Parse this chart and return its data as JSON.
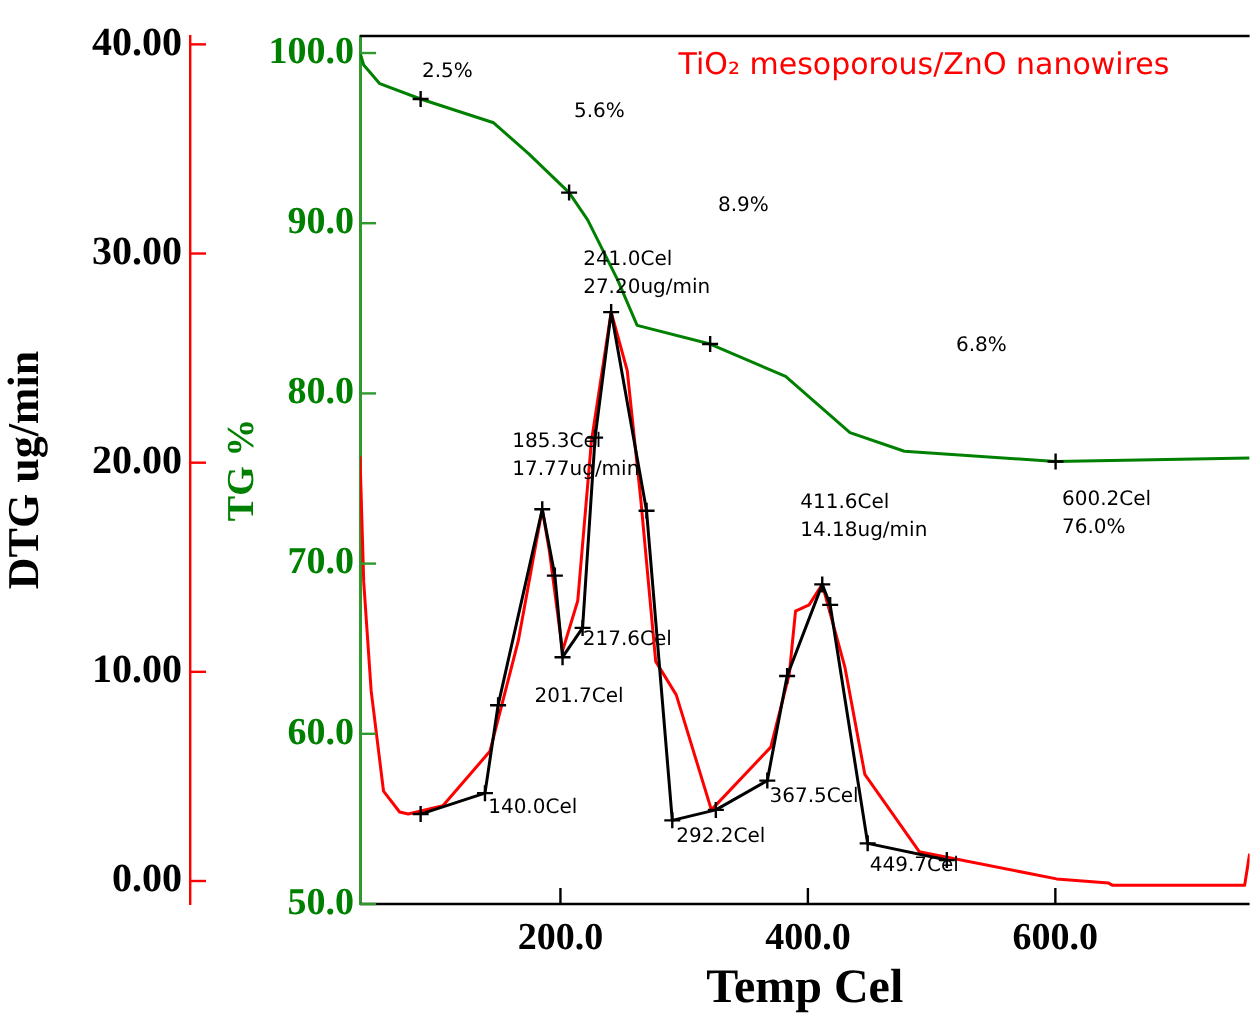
{
  "chart_data": {
    "type": "line",
    "title": "TiO₂ mesoporous/ZnO nanowires",
    "xlabel": "Temp Cel",
    "ylabel": "DTG ug/min",
    "y2label": "TG %",
    "xlim": [
      38,
      757
    ],
    "xticks": [
      {
        "value": 200,
        "label": "200.0"
      },
      {
        "value": 400,
        "label": "400.0"
      },
      {
        "value": 600,
        "label": "600.0"
      }
    ],
    "ylim": [
      -1.1,
      40.4
    ],
    "yticks": [
      {
        "value": 0,
        "label": "0.00"
      },
      {
        "value": 10,
        "label": "10.00"
      },
      {
        "value": 20,
        "label": "20.00"
      },
      {
        "value": 30,
        "label": "30.00"
      },
      {
        "value": 40,
        "label": "40.00"
      }
    ],
    "y2lim": [
      50,
      101
    ],
    "y2ticks": [
      {
        "value": 50,
        "label": "50.0"
      },
      {
        "value": 60,
        "label": "60.0"
      },
      {
        "value": 70,
        "label": "70.0"
      },
      {
        "value": 80,
        "label": "80.0"
      },
      {
        "value": 90,
        "label": "90.0"
      },
      {
        "value": 100,
        "label": "100.0"
      }
    ],
    "grid": false,
    "legend": false,
    "series": [
      {
        "type": "line",
        "axis": "y",
        "color": "#ff0000",
        "marker": "none",
        "x": [
          38,
          41,
          47,
          57,
          70,
          77,
          105,
          143,
          166,
          185.3,
          191,
          201.7,
          214,
          225,
          241.0,
          254,
          265,
          277,
          293.6,
          322,
          370,
          385,
          390,
          401,
          411.6,
          430,
          446,
          490,
          601,
          643,
          646,
          753,
          757
        ],
        "values": [
          20.3,
          14.3,
          9.1,
          4.3,
          3.3,
          3.2,
          3.6,
          6.2,
          11.5,
          17.77,
          15.8,
          11.0,
          13.4,
          21,
          27.2,
          24.4,
          18.2,
          10.5,
          8.9,
          3.4,
          6.4,
          9.9,
          12.9,
          13.2,
          14.18,
          10.2,
          5.1,
          1.4,
          0.1,
          -0.1,
          -0.2,
          -0.2,
          1.3
        ]
      },
      {
        "type": "line",
        "axis": "y2",
        "color": "#008000",
        "marker": "none",
        "x": [
          38,
          41,
          54,
          87,
          146,
          174,
          207,
          222,
          246,
          262,
          321,
          382,
          434,
          478,
          600.2,
          757
        ],
        "values": [
          100.0,
          99.3,
          98.2,
          97.3,
          95.9,
          94.1,
          91.8,
          90.2,
          86.7,
          84.0,
          82.9,
          81.0,
          77.7,
          76.6,
          76.0,
          76.2
        ]
      },
      {
        "type": "scatter",
        "axis": "y2",
        "color": "#000000",
        "marker": "cross",
        "x": [
          87,
          207,
          321,
          600.2
        ],
        "values": [
          97.3,
          91.8,
          82.9,
          76.0
        ]
      },
      {
        "type": "line",
        "axis": "y",
        "color": "#000000",
        "marker": "cross",
        "x": [
          87,
          139,
          149.6,
          185.3,
          195.5,
          201.7,
          217.9,
          228,
          241.0,
          269.6,
          290.4,
          325.6,
          367.2,
          383.2,
          411.6,
          418,
          448.3,
          512.3
        ],
        "values": [
          3.2,
          4.2,
          8.4,
          17.77,
          14.6,
          10.7,
          12.1,
          21.2,
          27.2,
          17.7,
          2.9,
          3.4,
          4.8,
          9.8,
          14.18,
          13.2,
          1.8,
          1.0
        ]
      }
    ],
    "annotations": [
      "2.5%",
      "5.6%",
      "8.9%",
      "6.8%",
      {
        "text": "241.0Cel\n27.20ug/min",
        "x": 241.0,
        "y": 27.2
      },
      {
        "text": "185.3Cel\n17.77ug/min",
        "x": 185.3,
        "y": 17.77
      },
      {
        "text": "201.7Cel",
        "x": 201.7,
        "y": 10.7
      },
      {
        "text": "217.6Cel",
        "x": 218,
        "y": 12.0
      },
      {
        "text": "140.0Cel",
        "x": 141.6,
        "y": 4.0
      },
      {
        "text": "292.2Cel",
        "x": 293.6,
        "y": 2.6
      },
      {
        "text": "367.5Cel",
        "x": 369,
        "y": 4.5
      },
      {
        "text": "449.7Cel",
        "x": 450,
        "y": 1.6
      },
      {
        "text": "411.6Cel\n14.18ug/min",
        "x": 411.6,
        "y": 14.18
      },
      "600.2Cel\n76.0%"
    ]
  }
}
